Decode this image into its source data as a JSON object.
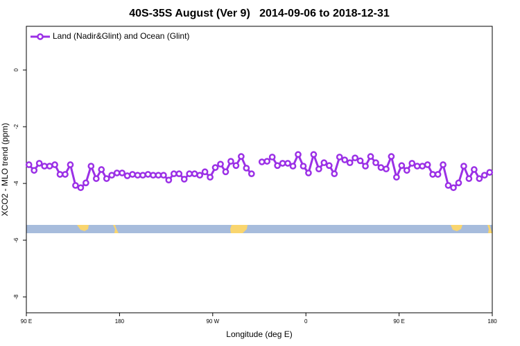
{
  "chart_data": {
    "type": "line",
    "title": "40S-35S August (Ver 9)   2014-09-06 to 2018-12-31",
    "x_label": "Longitude (deg E)",
    "y_label": "XCO2 - MLO trend (ppm)",
    "x": [
      92.5,
      97.5,
      102.5,
      107.5,
      112.5,
      117.5,
      122.5,
      127.5,
      132.5,
      137.5,
      142.5,
      147.5,
      152.5,
      157.5,
      162.5,
      167.5,
      172.5,
      177.5,
      182.5,
      187.5,
      192.5,
      197.5,
      202.5,
      207.5,
      212.5,
      217.5,
      222.5,
      227.5,
      232.5,
      237.5,
      242.5,
      247.5,
      252.5,
      257.5,
      262.5,
      267.5,
      272.5,
      277.5,
      282.5,
      287.5,
      292.5,
      297.5,
      302.5,
      307.5,
      312.5,
      317.5,
      322.5,
      327.5,
      332.5,
      337.5,
      342.5,
      347.5,
      352.5,
      357.5,
      362.5,
      367.5,
      372.5,
      377.5,
      382.5,
      387.5,
      392.5,
      397.5,
      402.5,
      407.5,
      412.5,
      417.5,
      422.5,
      427.5,
      432.5,
      437.5,
      442.5,
      447.5,
      452.5,
      457.5,
      462.5,
      467.5,
      472.5,
      477.5,
      482.5,
      487.5,
      492.5,
      497.5,
      502.5,
      507.5,
      512.5,
      517.5,
      522.5,
      527.5,
      532.5,
      537.5
    ],
    "series": [
      {
        "name": "Land (Nadir&Glint) and Ocean (Glint)",
        "color": "#9b30e6",
        "values": [
          -3.34,
          -3.54,
          -3.29,
          -3.39,
          -3.39,
          -3.34,
          -3.68,
          -3.68,
          -3.34,
          -4.07,
          -4.15,
          -3.98,
          -3.39,
          -3.83,
          -3.51,
          -3.83,
          -3.71,
          -3.63,
          -3.63,
          -3.73,
          -3.68,
          -3.71,
          -3.71,
          -3.68,
          -3.71,
          -3.71,
          -3.71,
          -3.88,
          -3.66,
          -3.66,
          -3.85,
          -3.66,
          -3.66,
          -3.71,
          -3.59,
          -3.78,
          -3.44,
          -3.32,
          -3.59,
          -3.22,
          -3.37,
          -3.05,
          -3.46,
          -3.66,
          null,
          -3.24,
          -3.22,
          -3.07,
          -3.37,
          -3.29,
          -3.29,
          -3.39,
          -2.98,
          -3.39,
          -3.63,
          -2.98,
          -3.49,
          -3.27,
          -3.37,
          -3.66,
          -3.07,
          -3.17,
          -3.27,
          -3.1,
          -3.2,
          -3.39,
          -3.05,
          -3.27,
          -3.44,
          -3.49,
          -3.05,
          -3.78,
          -3.37,
          -3.54,
          -3.29,
          -3.39,
          -3.39,
          -3.34,
          -3.68,
          -3.68,
          -3.34,
          -4.07,
          -4.15,
          -3.98,
          -3.39,
          -3.83,
          -3.51,
          -3.83,
          -3.71,
          -3.61
        ]
      }
    ],
    "xlim": [
      90,
      540
    ],
    "xticks": [
      {
        "value": 90,
        "label": "90 E"
      },
      180,
      {
        "value": 270,
        "label": "90 W"
      },
      {
        "value": 360,
        "label": "0"
      },
      {
        "value": 450,
        "label": "90 E"
      },
      {
        "value": 540,
        "label": "180"
      }
    ],
    "ylim": [
      -8.56,
      1.54
    ],
    "yticks": [
      0,
      -2,
      -4,
      -6,
      -8
    ],
    "grid": false,
    "legend": "upper left"
  }
}
